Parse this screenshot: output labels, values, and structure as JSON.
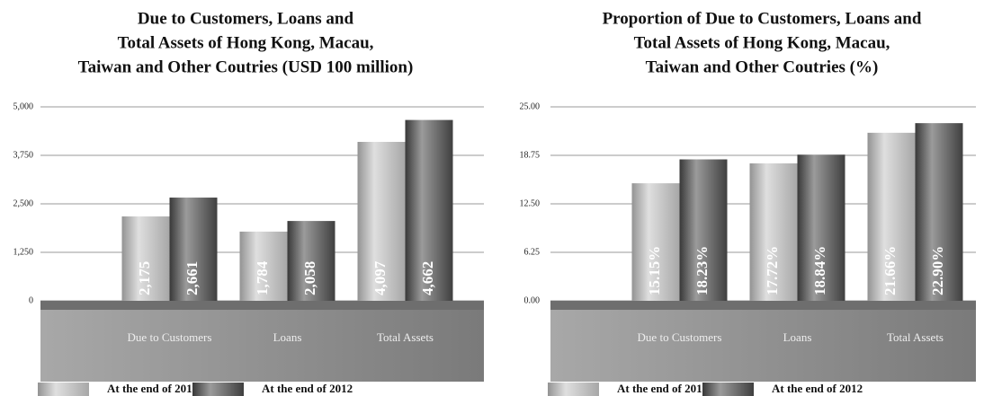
{
  "chart_data": [
    {
      "type": "bar",
      "title": [
        "Due to Customers, Loans and",
        "Total Assets of Hong Kong, Macau,",
        "Taiwan and Other Coutries (USD 100 million)"
      ],
      "categories": [
        "Due to Customers",
        "Loans",
        "Total Assets"
      ],
      "series": [
        {
          "name": "At the end of 2011",
          "color": "#c4c4c4",
          "values": [
            2175,
            1784,
            4097
          ],
          "value_labels": [
            "2,175",
            "1,784",
            "4,097"
          ]
        },
        {
          "name": "At the end of 2012",
          "color": "#4a4a4a",
          "values": [
            2661,
            2058,
            4662
          ],
          "value_labels": [
            "2,661",
            "2,058",
            "4,662"
          ]
        }
      ],
      "ylim": [
        0,
        5000
      ],
      "yticks": [
        0,
        {
          "value": 1250,
          "label": "1,250"
        },
        {
          "value": 2500,
          "label": "2,500"
        },
        {
          "value": 3750,
          "label": "3,750"
        },
        {
          "value": 5000,
          "label": "5,000"
        }
      ],
      "grid": true
    },
    {
      "type": "bar",
      "title": [
        "Proportion of Due to Customers, Loans and",
        "Total Assets of Hong Kong, Macau,",
        "Taiwan and Other Coutries (%)"
      ],
      "categories": [
        "Due to Customers",
        "Loans",
        "Total Assets"
      ],
      "series": [
        {
          "name": "At the end of 2011",
          "color": "#c4c4c4",
          "values": [
            15.15,
            17.72,
            21.66
          ],
          "value_labels": [
            "15.15%",
            "17.72%",
            "21.66%"
          ]
        },
        {
          "name": "At the end of 2012",
          "color": "#4a4a4a",
          "values": [
            18.23,
            18.84,
            22.9
          ],
          "value_labels": [
            "18.23%",
            "18.84%",
            "22.90%"
          ]
        }
      ],
      "ylim": [
        0,
        25
      ],
      "yticks": [
        {
          "value": 0,
          "label": "0.00"
        },
        {
          "value": 6.25,
          "label": "6.25"
        },
        {
          "value": 12.5,
          "label": "12.50"
        },
        {
          "value": 18.75,
          "label": "18.75"
        },
        {
          "value": 25,
          "label": "25.00"
        }
      ],
      "grid": true
    }
  ]
}
